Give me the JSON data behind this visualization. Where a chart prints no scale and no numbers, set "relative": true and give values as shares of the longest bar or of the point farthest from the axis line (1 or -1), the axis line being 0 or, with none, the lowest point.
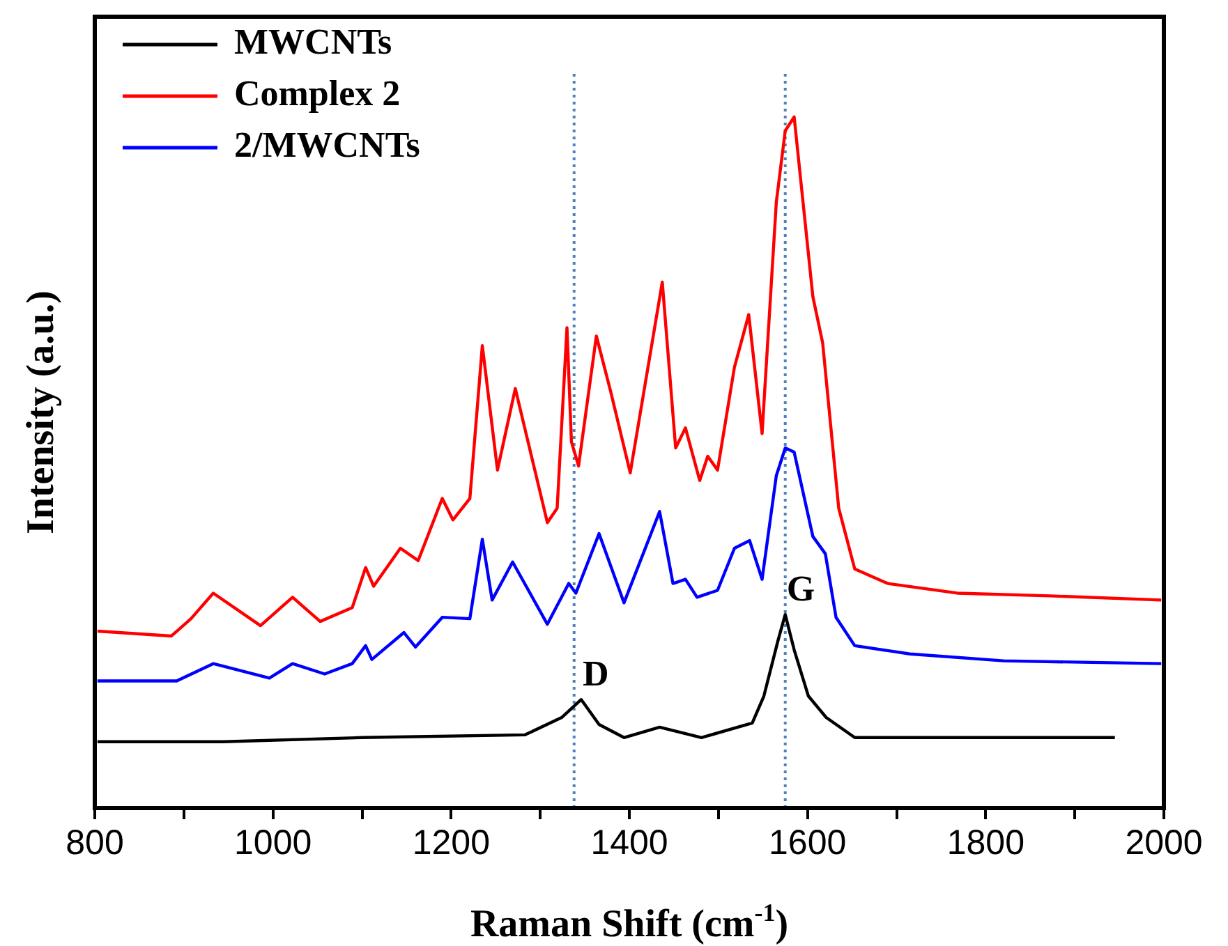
{
  "chart_data": {
    "type": "line",
    "relative": true,
    "xlabel": "Raman Shift (cm$^{-1}$)",
    "ylabel": "Intensity (a.u.)",
    "xlim": [
      800,
      2000
    ],
    "xticks": [
      800,
      {
        "value": 900,
        "label": null
      },
      1000,
      {
        "value": 1100,
        "label": null
      },
      1200,
      {
        "value": 1300,
        "label": null
      },
      1400,
      {
        "value": 1500,
        "label": null
      },
      1600,
      {
        "value": 1700,
        "label": null
      },
      1800,
      {
        "value": 1900,
        "label": null
      },
      2000
    ],
    "grid": false,
    "legend": "top left",
    "marker": "none",
    "line_style": "solid",
    "ref_lines": [
      {
        "axis": "x",
        "value": 1338,
        "color": "#4f81bd",
        "line_style": "dotted"
      },
      {
        "axis": "x",
        "value": 1575,
        "color": "#4f81bd",
        "line_style": "dotted"
      }
    ],
    "annotations": [
      {
        "text": "D",
        "x": 1346,
        "y": 0.157
      },
      {
        "text": "G",
        "x": 1575,
        "y": 0.28
      }
    ],
    "series": [
      {
        "name": "MWCNTs",
        "color": "#000000",
        "x": [
          803,
          944,
          1100,
          1283,
          1324,
          1346,
          1366,
          1394,
          1434,
          1481,
          1538,
          1551,
          1567,
          1575,
          1585,
          1601,
          1621,
          1653,
          1768,
          1945
        ],
        "values": [
          0.096,
          0.096,
          0.102,
          0.106,
          0.131,
          0.157,
          0.121,
          0.102,
          0.117,
          0.102,
          0.123,
          0.162,
          0.243,
          0.28,
          0.229,
          0.162,
          0.131,
          0.102,
          0.102,
          0.102
        ]
      },
      {
        "name": "Complex 2",
        "color": "#ff0000",
        "x": [
          803,
          886,
          908,
          933,
          986,
          1022,
          1053,
          1089,
          1104,
          1113,
          1143,
          1163,
          1190,
          1202,
          1221,
          1235,
          1252,
          1272,
          1308,
          1319,
          1330,
          1335,
          1343,
          1363,
          1379,
          1401,
          1437,
          1452,
          1463,
          1479,
          1488,
          1499,
          1518,
          1534,
          1549,
          1565,
          1575,
          1585,
          1606,
          1617,
          1635,
          1653,
          1690,
          1768,
          1872,
          1997
        ],
        "values": [
          0.256,
          0.249,
          0.274,
          0.311,
          0.264,
          0.305,
          0.27,
          0.29,
          0.348,
          0.321,
          0.376,
          0.358,
          0.448,
          0.417,
          0.448,
          0.669,
          0.489,
          0.607,
          0.413,
          0.434,
          0.695,
          0.53,
          0.495,
          0.683,
          0.603,
          0.485,
          0.761,
          0.521,
          0.55,
          0.474,
          0.509,
          0.489,
          0.638,
          0.714,
          0.542,
          0.877,
          0.98,
          1,
          0.74,
          0.673,
          0.434,
          0.346,
          0.325,
          0.311,
          0.307,
          0.301
        ]
      },
      {
        "name": "2/MWCNTs",
        "color": "#0000ff",
        "x": [
          803,
          892,
          933,
          996,
          1022,
          1058,
          1089,
          1104,
          1111,
          1147,
          1160,
          1190,
          1221,
          1235,
          1246,
          1269,
          1308,
          1332,
          1340,
          1366,
          1394,
          1434,
          1449,
          1463,
          1476,
          1499,
          1518,
          1535,
          1549,
          1565,
          1575,
          1585,
          1606,
          1620,
          1632,
          1653,
          1715,
          1820,
          1997
        ],
        "values": [
          0.184,
          0.184,
          0.209,
          0.188,
          0.209,
          0.194,
          0.209,
          0.235,
          0.215,
          0.254,
          0.233,
          0.276,
          0.274,
          0.389,
          0.301,
          0.356,
          0.266,
          0.325,
          0.311,
          0.397,
          0.297,
          0.429,
          0.325,
          0.331,
          0.305,
          0.315,
          0.376,
          0.387,
          0.331,
          0.481,
          0.521,
          0.515,
          0.393,
          0.368,
          0.276,
          0.235,
          0.223,
          0.213,
          0.209
        ]
      }
    ]
  }
}
